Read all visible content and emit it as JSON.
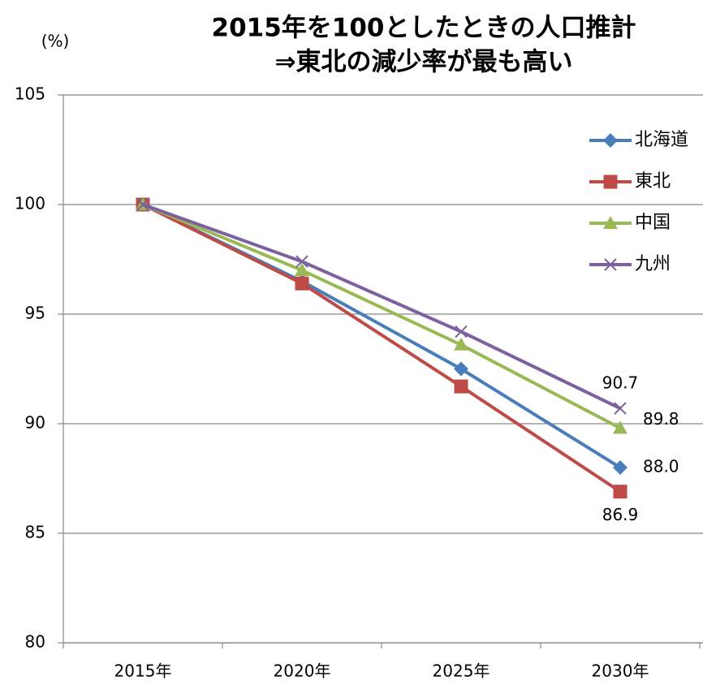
{
  "chart_data": {
    "type": "line",
    "title": "2015年を100としたときの人口推計",
    "subtitle": "⇒東北の減少率が最も高い",
    "y_label": "(%)",
    "categories": [
      "2015年",
      "2020年",
      "2025年",
      "2030年"
    ],
    "series": [
      {
        "name": "北海道",
        "color": "#4a7ebb",
        "marker": "diamond",
        "values": [
          100,
          96.5,
          92.5,
          88.0
        ],
        "value_labels": [
          null,
          null,
          null,
          "88.0"
        ]
      },
      {
        "name": "東北",
        "color": "#be4b48",
        "marker": "square",
        "values": [
          100,
          96.4,
          91.7,
          86.9
        ],
        "value_labels": [
          null,
          null,
          null,
          "86.9"
        ]
      },
      {
        "name": "中国",
        "color": "#98b954",
        "marker": "triangle",
        "values": [
          100,
          97.0,
          93.6,
          89.8
        ],
        "value_labels": [
          null,
          null,
          null,
          "89.8"
        ]
      },
      {
        "name": "九州",
        "color": "#7d60a0",
        "marker": "x",
        "values": [
          100,
          97.4,
          94.2,
          90.7
        ],
        "value_labels": [
          null,
          null,
          null,
          "90.7"
        ]
      }
    ],
    "ylim": [
      80,
      105
    ],
    "yticks": [
      80,
      85,
      90,
      95,
      100,
      105
    ],
    "grid": true,
    "legend": "top-right"
  }
}
